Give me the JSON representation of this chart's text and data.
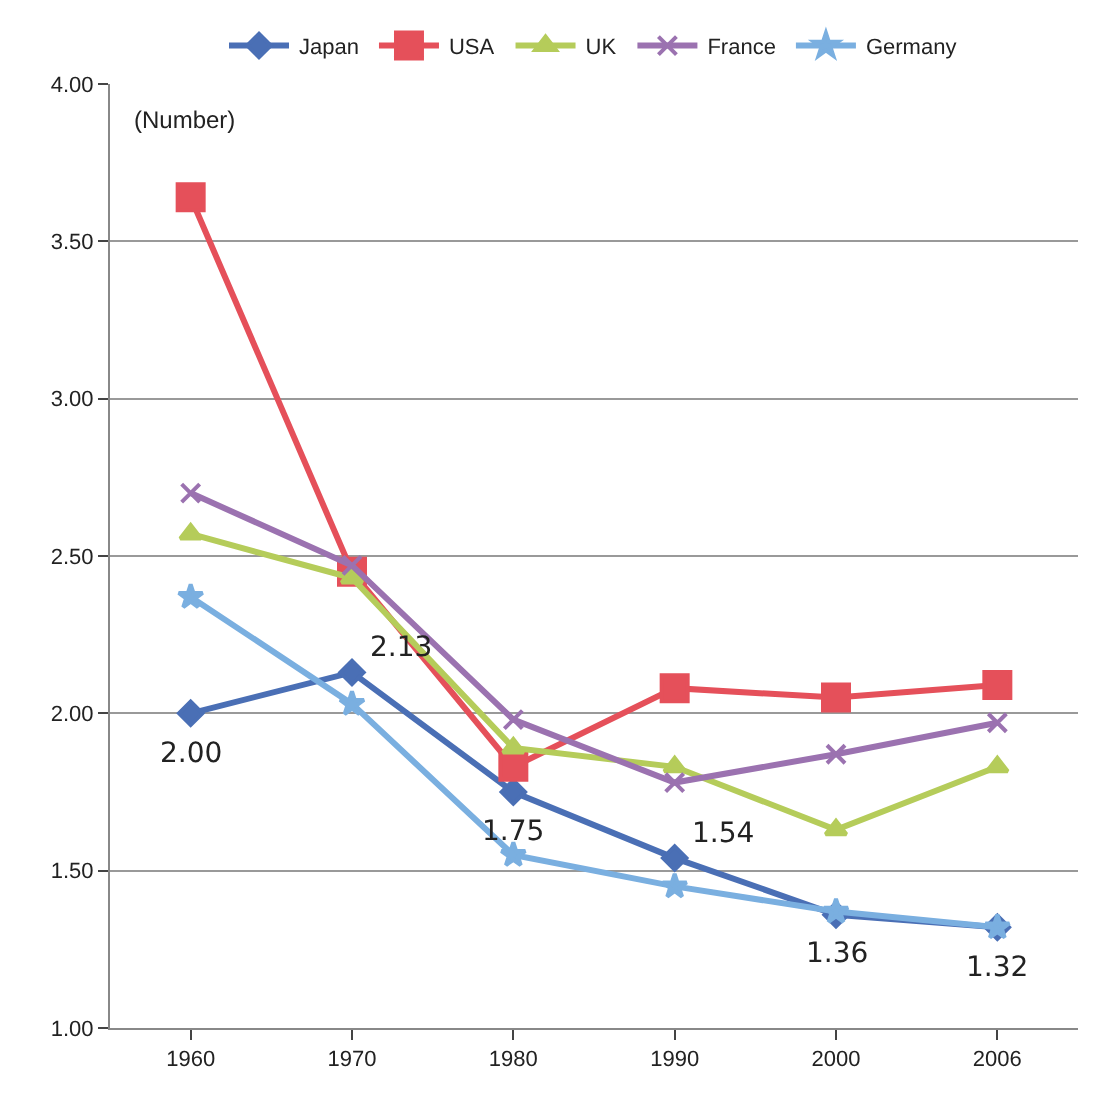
{
  "chart_data": {
    "type": "line",
    "ylabel": "(Number)",
    "categories": [
      "1960",
      "1970",
      "1980",
      "1990",
      "2000",
      "2006"
    ],
    "series": [
      {
        "name": "Japan",
        "color": "#4a6fb5",
        "marker": "diamond",
        "values": [
          2.0,
          2.13,
          1.75,
          1.54,
          1.36,
          1.32
        ],
        "value_labels": [
          "2.00",
          "2.13",
          "1.75",
          "1.54",
          "1.36",
          "1.32"
        ]
      },
      {
        "name": "USA",
        "color": "#e5505a",
        "marker": "square",
        "values": [
          3.64,
          2.45,
          1.83,
          2.08,
          2.05,
          2.09
        ]
      },
      {
        "name": "UK",
        "color": "#b5cc5a",
        "marker": "triangle",
        "values": [
          2.57,
          2.43,
          1.89,
          1.83,
          1.63,
          1.83
        ]
      },
      {
        "name": "France",
        "color": "#9b72b0",
        "marker": "cross",
        "values": [
          2.7,
          2.47,
          1.98,
          1.78,
          1.87,
          1.97
        ]
      },
      {
        "name": "Germany",
        "color": "#7aafe0",
        "marker": "star",
        "values": [
          2.37,
          2.03,
          1.55,
          1.45,
          1.37,
          1.32
        ]
      }
    ],
    "ylim": [
      1.0,
      4.0
    ],
    "yticks": [
      {
        "value": 1.0,
        "label": "1.00"
      },
      {
        "value": 1.5,
        "label": "1.50"
      },
      {
        "value": 2.0,
        "label": "2.00"
      },
      {
        "value": 2.5,
        "label": "2.50"
      },
      {
        "value": 3.0,
        "label": "3.00"
      },
      {
        "value": 3.5,
        "label": "3.50"
      },
      {
        "value": 4.0,
        "label": "4.00"
      }
    ],
    "grid": "y",
    "legend": "top",
    "line_style": "solid"
  }
}
